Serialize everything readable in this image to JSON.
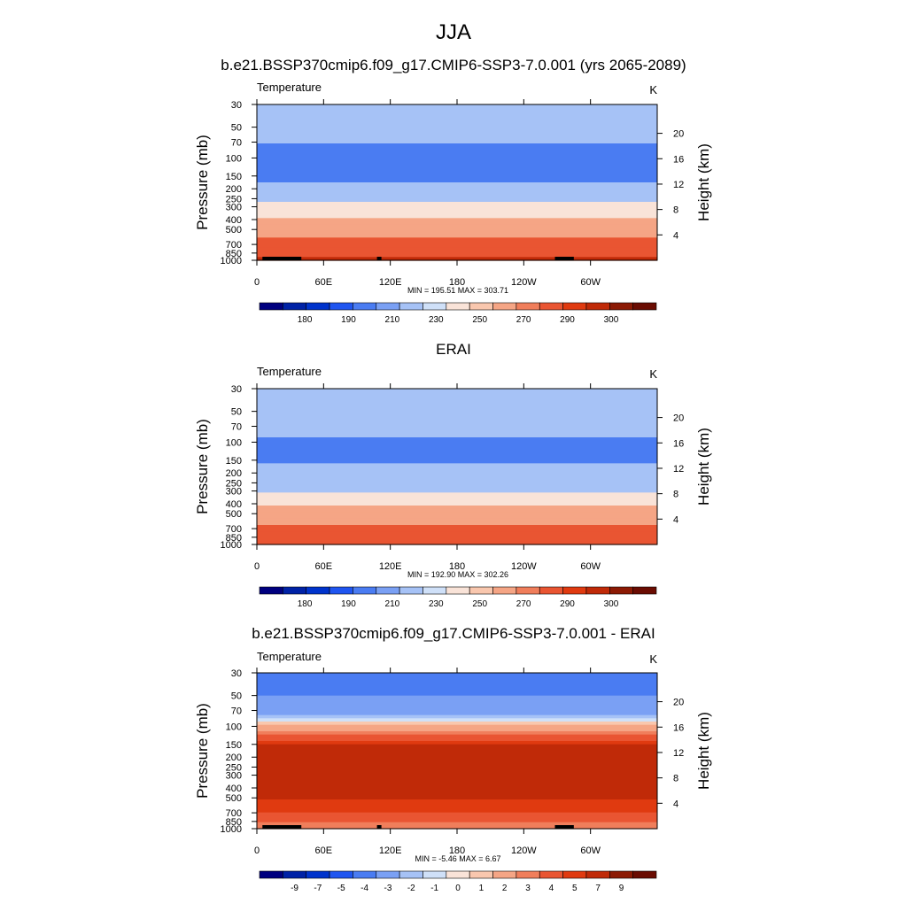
{
  "figure": {
    "title": "JJA",
    "colorbar_colors": [
      "#00007f",
      "#0022a6",
      "#0033cc",
      "#1f55f0",
      "#4a7cf2",
      "#7aa0f4",
      "#a6c2f6",
      "#cfe0f8",
      "#f9e3d8",
      "#f9c7ae",
      "#f5a585",
      "#f07e5b",
      "#e95532",
      "#e03a10",
      "#c02a08",
      "#8c1a04",
      "#6a0c02"
    ],
    "axis_labels": {
      "left": "Pressure (mb)",
      "right": "Height (km)"
    },
    "pressure_ticks": [
      "30",
      "50",
      "70",
      "100",
      "150",
      "200",
      "250",
      "300",
      "400",
      "500",
      "700",
      "850",
      "1000"
    ],
    "height_ticks": [
      "20",
      "16",
      "12",
      "8",
      "4"
    ],
    "lon_ticks": [
      "0",
      "60E",
      "120E",
      "180",
      "120W",
      "60W"
    ]
  },
  "chart_data": [
    {
      "type": "heatmap",
      "title": "b.e21.BSSP370cmip6.f09_g17.CMIP6-SSP3-7.0.001 (yrs 2065-2089)",
      "left_label": "Temperature",
      "right_label": "K",
      "stats": "MIN = 195.51  MAX = 303.71",
      "colorbar": {
        "labels": [
          "180",
          "190",
          "210",
          "230",
          "250",
          "270",
          "290",
          "300"
        ]
      },
      "profile_K_by_pressure": [
        222,
        218,
        210,
        203,
        207,
        215,
        227,
        237,
        252,
        263,
        279,
        287,
        293
      ],
      "terrain_lon": [
        [
          5,
          40
        ],
        [
          108,
          112
        ],
        [
          268,
          285
        ]
      ]
    },
    {
      "type": "heatmap",
      "title": "ERAI",
      "left_label": "Temperature",
      "right_label": "K",
      "stats": "MIN = 192.90  MAX = 302.26",
      "colorbar": {
        "labels": [
          "180",
          "190",
          "210",
          "230",
          "250",
          "270",
          "290",
          "300"
        ]
      },
      "profile_K_by_pressure": [
        225,
        220,
        214,
        208,
        208,
        214,
        221,
        230,
        246,
        258,
        274,
        283,
        290
      ],
      "terrain_lon": []
    },
    {
      "type": "heatmap",
      "title": "b.e21.BSSP370cmip6.f09_g17.CMIP6-SSP3-7.0.001 - ERAI",
      "left_label": "Temperature",
      "right_label": "K",
      "stats": "MIN =  -5.46  MAX =   6.67",
      "colorbar": {
        "labels": [
          "-9",
          "-7",
          "-5",
          "-4",
          "-3",
          "-2",
          "-1",
          "0",
          "1",
          "2",
          "3",
          "4",
          "5",
          "7",
          "9"
        ]
      },
      "profile_K_by_pressure": [
        -4.0,
        -3.0,
        -3.0,
        1.0,
        5.0,
        5.5,
        5.5,
        5.5,
        5.5,
        5.0,
        4.0,
        3.0,
        2.0
      ],
      "terrain_lon": [
        [
          5,
          40
        ],
        [
          108,
          112
        ],
        [
          268,
          285
        ]
      ]
    }
  ]
}
